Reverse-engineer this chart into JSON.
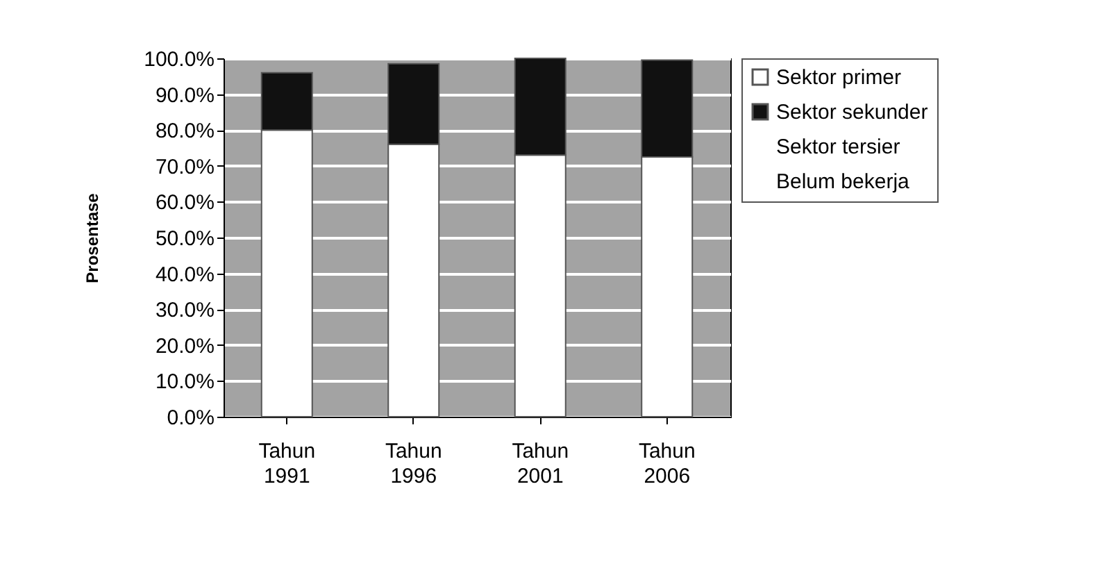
{
  "chart_data": {
    "type": "bar",
    "stacked": true,
    "ylabel": "Prosentase",
    "categories": [
      "Tahun 1991",
      "Tahun 1996",
      "Tahun 2001",
      "Tahun 2006"
    ],
    "series": [
      {
        "name": "Sektor primer",
        "color": "#ffffff",
        "values": [
          80,
          76,
          73,
          72.5
        ]
      },
      {
        "name": "Sektor sekunder",
        "color": "#111111",
        "values": [
          16,
          22.5,
          27,
          27
        ]
      },
      {
        "name": "Sektor tersier",
        "values": [
          null,
          null,
          null,
          null
        ]
      },
      {
        "name": "Belum bekerja",
        "values": [
          null,
          null,
          null,
          null
        ]
      }
    ],
    "ylim": [
      0,
      100
    ],
    "yticks": [
      {
        "value": 0,
        "label": "0.0%"
      },
      {
        "value": 10,
        "label": "10.0%"
      },
      {
        "value": 20,
        "label": "20.0%"
      },
      {
        "value": 30,
        "label": "30.0%"
      },
      {
        "value": 40,
        "label": "40.0%"
      },
      {
        "value": 50,
        "label": "50.0%"
      },
      {
        "value": 60,
        "label": "60.0%"
      },
      {
        "value": 70,
        "label": "70.0%"
      },
      {
        "value": 80,
        "label": "80.0%"
      },
      {
        "value": 90,
        "label": "90.0%"
      },
      {
        "value": 100,
        "label": "100.0%"
      }
    ],
    "grid": "y",
    "legend": "right"
  }
}
